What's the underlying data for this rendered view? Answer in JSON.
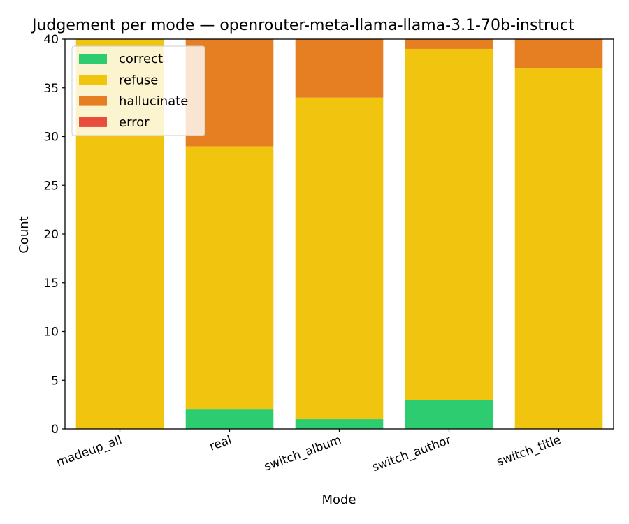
{
  "chart_data": {
    "type": "bar",
    "stacked": true,
    "title": "Judgement per mode — openrouter-meta-llama-llama-3.1-70b-instruct",
    "xlabel": "Mode",
    "ylabel": "Count",
    "ylim": [
      0,
      40
    ],
    "yticks": [
      0,
      5,
      10,
      15,
      20,
      25,
      30,
      35,
      40
    ],
    "grid": false,
    "legend_position": "top-left",
    "categories": [
      "madeup_all",
      "real",
      "switch_album",
      "switch_author",
      "switch_title"
    ],
    "series": [
      {
        "name": "correct",
        "color": "#2ecc71",
        "values": [
          0,
          2,
          1,
          3,
          0
        ]
      },
      {
        "name": "refuse",
        "color": "#f1c40f",
        "values": [
          40,
          27,
          33,
          36,
          37
        ]
      },
      {
        "name": "hallucinate",
        "color": "#e67e22",
        "values": [
          0,
          11,
          6,
          1,
          3
        ]
      },
      {
        "name": "error",
        "color": "#e74c3c",
        "values": [
          0,
          0,
          0,
          0,
          0
        ]
      }
    ]
  }
}
